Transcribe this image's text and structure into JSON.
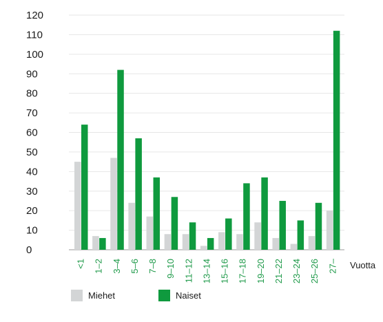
{
  "chart_data": {
    "type": "bar",
    "categories": [
      "<1",
      "1–2",
      "3–4",
      "5–6",
      "7–8",
      "9–10",
      "11–12",
      "13–14",
      "15–16",
      "17–18",
      "19–20",
      "21–22",
      "23–24",
      "25–26",
      "27–"
    ],
    "series": [
      {
        "name": "Miehet",
        "color": "#d3d5d6",
        "values": [
          45,
          7,
          47,
          24,
          17,
          8,
          8,
          2,
          9,
          8,
          14,
          6,
          3,
          7,
          20
        ]
      },
      {
        "name": "Naiset",
        "color": "#0f9a3e",
        "values": [
          64,
          6,
          92,
          57,
          37,
          27,
          14,
          6,
          16,
          34,
          37,
          25,
          15,
          24,
          112
        ]
      }
    ],
    "yticks": [
      0,
      10,
      20,
      30,
      40,
      50,
      60,
      70,
      80,
      90,
      100,
      110,
      120
    ],
    "ylim": [
      0,
      120
    ],
    "xlabel": "Vuotta",
    "ylabel": "",
    "legend": "bottom-left",
    "grid": true
  }
}
